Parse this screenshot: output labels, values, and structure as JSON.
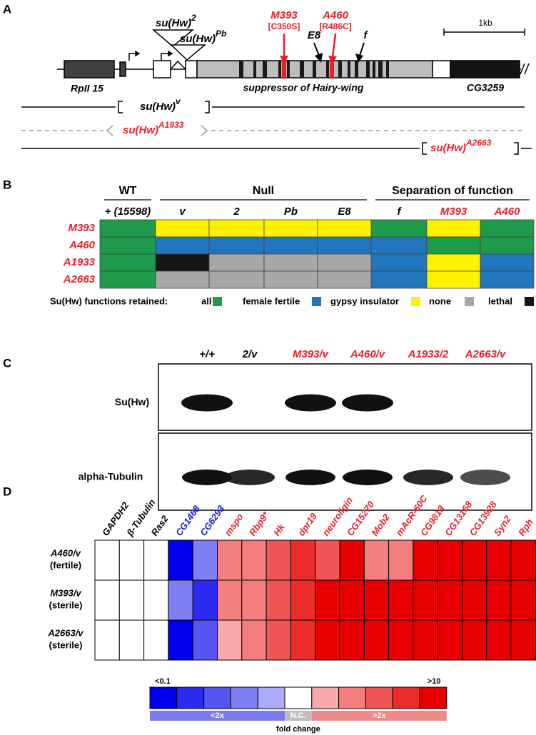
{
  "panel_a": {
    "label": "A",
    "scale_bar": "1kb",
    "insertions": [
      {
        "base": "su(Hw)",
        "sup": "2"
      },
      {
        "base": "su(Hw)",
        "sup": "Pb"
      }
    ],
    "mutations": [
      {
        "name": "M393",
        "change": "[C350S]"
      },
      {
        "name": "A460",
        "change": "[R486C]"
      }
    ],
    "markers": [
      "E8",
      "f"
    ],
    "genes": [
      "RpII 15",
      "suppressor of Hairy-wing",
      "CG3259"
    ],
    "alleles": [
      {
        "base": "su(Hw)",
        "sup": "v"
      },
      {
        "base": "su(Hw)",
        "sup": "A1933"
      },
      {
        "base": "su(Hw)",
        "sup": "A2663"
      }
    ]
  },
  "panel_b": {
    "label": "B",
    "groups": [
      "WT",
      "Null",
      "Separation of function"
    ],
    "columns": [
      {
        "label": "+ (15598)",
        "color": "#000000"
      },
      {
        "label": "v",
        "color": "#000000"
      },
      {
        "label": "2",
        "color": "#000000"
      },
      {
        "label": "Pb",
        "color": "#000000"
      },
      {
        "label": "E8",
        "color": "#000000"
      },
      {
        "label": "f",
        "color": "#000000"
      },
      {
        "label": "M393",
        "color": "#e8202a"
      },
      {
        "label": "A460",
        "color": "#e8202a"
      }
    ],
    "rows": [
      "M393",
      "A460",
      "A1933",
      "A2663"
    ],
    "row_color": "#e8202a",
    "cells": [
      [
        0,
        2,
        2,
        2,
        2,
        0,
        2,
        0
      ],
      [
        0,
        1,
        1,
        1,
        1,
        1,
        0,
        0
      ],
      [
        0,
        4,
        3,
        3,
        3,
        1,
        2,
        1
      ],
      [
        0,
        3,
        3,
        3,
        3,
        1,
        2,
        1
      ]
    ],
    "legend_title": "Su(Hw) functions retained:",
    "legend": [
      {
        "label": "all",
        "color": "#1e9a4b"
      },
      {
        "label": "female fertile",
        "color": "#2176bd"
      },
      {
        "label": "gypsy insulator",
        "color": "#fff200"
      },
      {
        "label": "none",
        "color": "#a7a7a7"
      },
      {
        "label": "lethal",
        "color": "#161616"
      }
    ]
  },
  "panel_c": {
    "label": "C",
    "lanes": [
      {
        "label": "+/+",
        "color": "#000000"
      },
      {
        "label": "2/v",
        "color": "#000000"
      },
      {
        "label": "M393/v",
        "color": "#e8202a"
      },
      {
        "label": "A460/v",
        "color": "#e8202a"
      },
      {
        "label": "A1933/2",
        "color": "#e8202a"
      },
      {
        "label": "A2663/v",
        "color": "#e8202a"
      }
    ],
    "blots": [
      {
        "name": "Su(Hw)",
        "bands": [
          1,
          0,
          1,
          1,
          0,
          0
        ]
      },
      {
        "name": "alpha-Tubulin",
        "bands": [
          1,
          0.9,
          1,
          1,
          0.9,
          0.75
        ]
      }
    ]
  },
  "panel_d": {
    "label": "D",
    "columns": [
      {
        "label": "GAPDH2",
        "color": "#000000"
      },
      {
        "label": "β-Tubulin",
        "color": "#000000"
      },
      {
        "label": "Ras2",
        "color": "#000000"
      },
      {
        "label": "CG1468",
        "color": "#1a1ae0"
      },
      {
        "label": "CG6293",
        "color": "#1a1ae0"
      },
      {
        "label": "mspo",
        "color": "#e8202a"
      },
      {
        "label": "Rbp9*",
        "color": "#e8202a"
      },
      {
        "label": "Hk",
        "color": "#e8202a"
      },
      {
        "label": "dpr19",
        "color": "#e8202a"
      },
      {
        "label": "neuroligin",
        "color": "#e8202a"
      },
      {
        "label": "CG15270",
        "color": "#e8202a"
      },
      {
        "label": "Mob2",
        "color": "#e8202a"
      },
      {
        "label": "mAcR-60C",
        "color": "#e8202a"
      },
      {
        "label": "CG9813",
        "color": "#e8202a"
      },
      {
        "label": "CG13168",
        "color": "#e8202a"
      },
      {
        "label": "CG13928",
        "color": "#e8202a"
      },
      {
        "label": "Syn2",
        "color": "#e8202a"
      },
      {
        "label": "Rph",
        "color": "#e8202a"
      }
    ],
    "rows": [
      {
        "genotype": "A460/v",
        "phenotype": "(fertile)"
      },
      {
        "genotype": "M393/v",
        "phenotype": "(sterile)"
      },
      {
        "genotype": "A2663/v",
        "phenotype": "(sterile)"
      }
    ],
    "levels": [
      [
        5,
        5,
        5,
        0,
        3,
        7,
        7,
        8,
        9,
        8,
        10,
        7,
        7,
        10,
        10,
        10,
        10,
        10
      ],
      [
        5,
        5,
        5,
        3,
        1,
        7,
        7,
        8,
        9,
        10,
        10,
        10,
        10,
        10,
        10,
        10,
        10,
        10
      ],
      [
        5,
        5,
        5,
        0,
        2,
        6,
        7,
        8,
        9,
        10,
        10,
        10,
        10,
        10,
        10,
        10,
        10,
        10
      ]
    ],
    "scale_colors": [
      "#0000ee",
      "#2b2bf0",
      "#5555f2",
      "#8080f4",
      "#aaaaf6",
      "#ffffff",
      "#f8aaaa",
      "#f47f7f",
      "#f05555",
      "#ec2b2b",
      "#e80000"
    ],
    "scale_min": "<0.1",
    "scale_max": ">10",
    "bands": [
      {
        "label": "<2x",
        "color": "#7b7bf0"
      },
      {
        "label": "N.C.",
        "color": "#bdbdbd"
      },
      {
        "label": ">2x",
        "color": "#f08a8a"
      }
    ],
    "axis_label": "fold change"
  }
}
